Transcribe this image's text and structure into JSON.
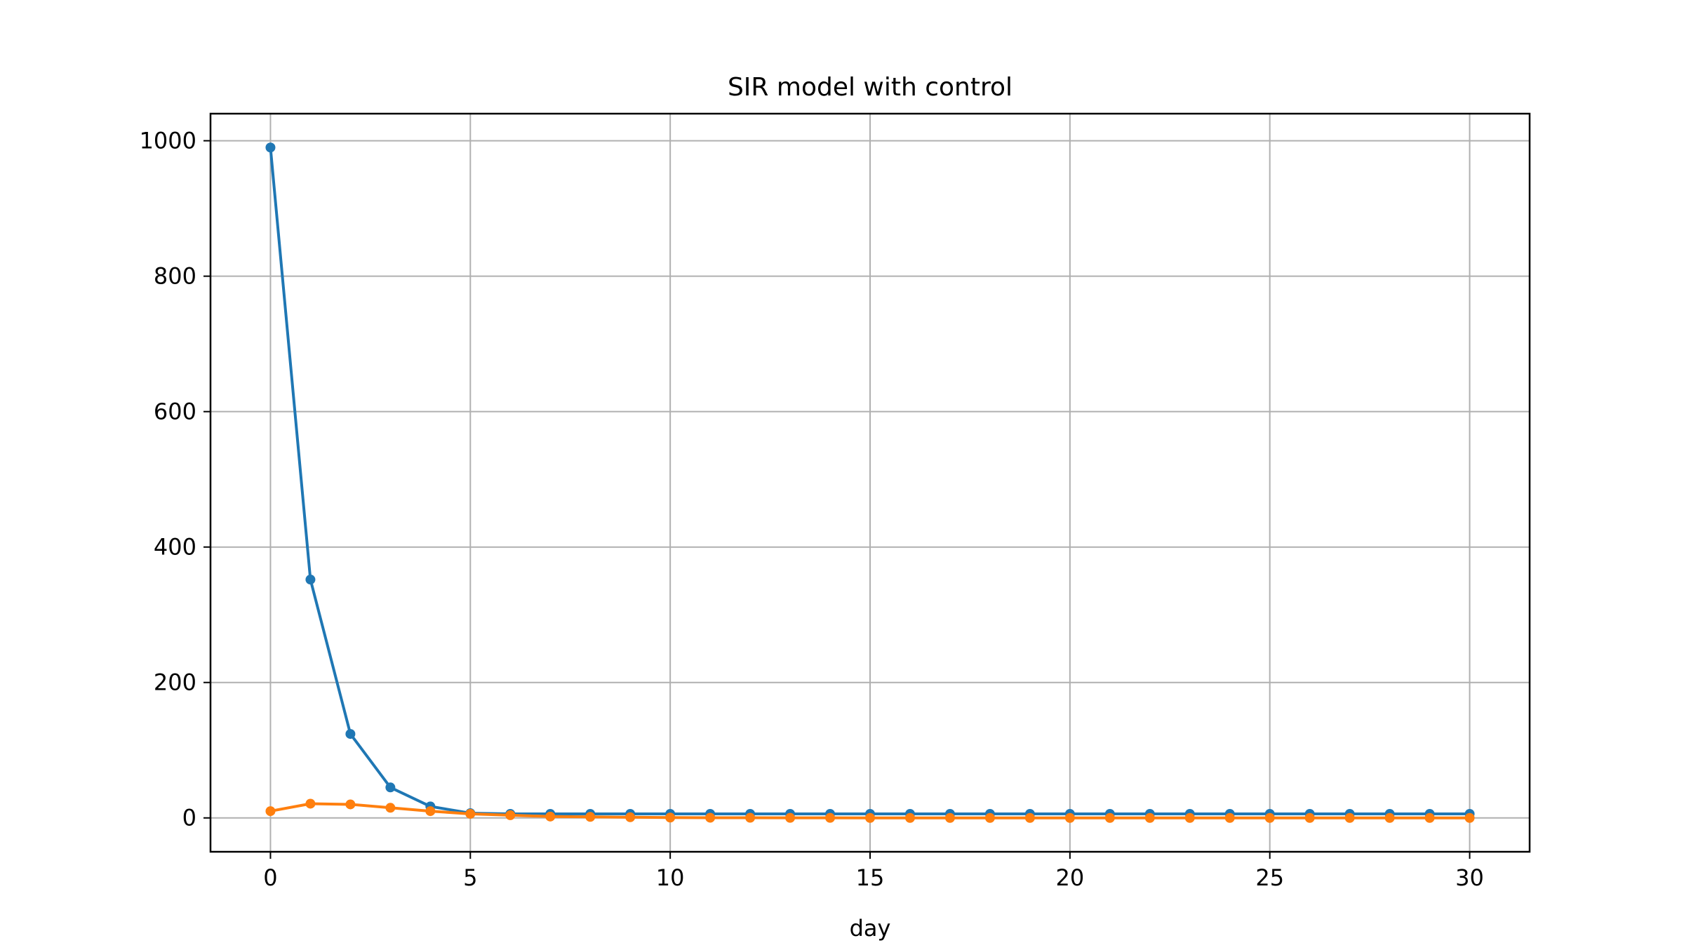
{
  "chart_data": {
    "type": "line",
    "title": "SIR model with control",
    "xlabel": "day",
    "ylabel": "",
    "xlim": [
      -1.5,
      31.5
    ],
    "ylim": [
      -50,
      1040
    ],
    "x_ticks": [
      0,
      5,
      10,
      15,
      20,
      25,
      30
    ],
    "y_ticks": [
      0,
      200,
      400,
      600,
      800,
      1000
    ],
    "grid": true,
    "legend": "none",
    "x": [
      0,
      1,
      2,
      3,
      4,
      5,
      6,
      7,
      8,
      9,
      10,
      11,
      12,
      13,
      14,
      15,
      16,
      17,
      18,
      19,
      20,
      21,
      22,
      23,
      24,
      25,
      26,
      27,
      28,
      29,
      30
    ],
    "series": [
      {
        "color": "#1f77b4",
        "marker": "circle",
        "values": [
          990,
          352,
          124,
          45,
          17,
          7,
          6,
          6,
          6,
          6,
          6,
          6,
          6,
          6,
          6,
          6,
          6,
          6,
          6,
          6,
          6,
          6,
          6,
          6,
          6,
          6,
          6,
          6,
          6,
          6,
          6
        ]
      },
      {
        "color": "#ff7f0e",
        "marker": "circle",
        "values": [
          10,
          21,
          20,
          15,
          10,
          6,
          4,
          2,
          1.5,
          1,
          0.5,
          0.3,
          0.2,
          0.1,
          0.1,
          0,
          0,
          0,
          0,
          0,
          0,
          0,
          0,
          0,
          0,
          0,
          0,
          0,
          0,
          0,
          0
        ]
      }
    ]
  }
}
